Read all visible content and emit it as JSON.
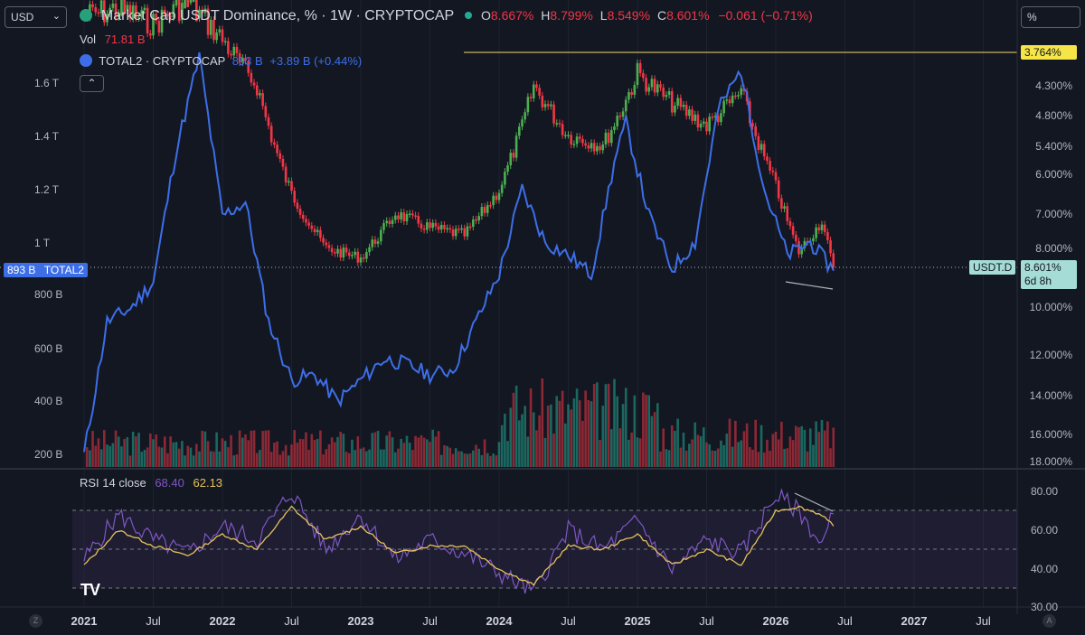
{
  "currency_selector": {
    "value": "USD"
  },
  "scale_selector": {
    "value": "%"
  },
  "header": {
    "title": "Market Cap USDT Dominance, % · 1W · CRYPTOCAP",
    "ohlc": {
      "o_label": "O",
      "o": "8.667%",
      "h_label": "H",
      "h": "8.799%",
      "l_label": "L",
      "l": "8.549%",
      "c_label": "C",
      "c": "8.601%",
      "chg": "−0.061 (−0.71%)"
    },
    "vol_label": "Vol",
    "vol_value": "71.81 B",
    "overlay_name": "TOTAL2 · CRYPTOCAP",
    "overlay_value": "893 B",
    "overlay_chg": "+3.89 B (+0.44%)",
    "collapse_icon": "chevron-up-icon"
  },
  "price_tags": {
    "line_level": "3.764%",
    "usdt_symbol": "USDT.D",
    "usdt_value": "8.601%",
    "usdt_countdown": "6d 8h",
    "total2_value": "893 B",
    "total2_symbol": "TOTAL2"
  },
  "rsi": {
    "label": "RSI 14 close",
    "value": "68.40",
    "ma_value": "62.13",
    "levels": [
      70,
      50,
      30
    ]
  },
  "colors": {
    "up": "#22ab94",
    "down": "#f23645",
    "candle_up": "#4caf50",
    "total2": "#3d6ee8",
    "rsi": "#7e57c2",
    "rsi_ma": "#e6c25b",
    "level_line": "#c9b458",
    "bg": "#131722"
  },
  "footer": {
    "z_icon": "z-icon",
    "a_icon": "a-icon",
    "logo": "TV"
  },
  "chart_data": [
    {
      "type": "line",
      "title": "Market Cap USDT Dominance, % · 1W · CRYPTOCAP",
      "y_scale": "inverted-log",
      "right_axis_ticks": [
        "4.300%",
        "4.800%",
        "5.400%",
        "6.000%",
        "7.000%",
        "8.000%",
        "10.000%",
        "12.000%",
        "14.000%",
        "16.000%",
        "18.000%"
      ],
      "left_axis_ticks": [
        "1.6 T",
        "1.4 T",
        "1.2 T",
        "1 T",
        "800 B",
        "600 B",
        "400 B",
        "200 B"
      ],
      "x_ticks": [
        "2021",
        "Jul",
        "2022",
        "Jul",
        "2023",
        "Jul",
        "2024",
        "Jul",
        "2025",
        "Jul",
        "2026",
        "Jul",
        "2027",
        "Jul"
      ],
      "usdt_dominance_pct": {
        "x": [
          "2021-01",
          "2021-04",
          "2021-07",
          "2021-10",
          "2022-01",
          "2022-04",
          "2022-07",
          "2022-10",
          "2023-01",
          "2023-04",
          "2023-07",
          "2023-10",
          "2024-01",
          "2024-04",
          "2024-07",
          "2024-10",
          "2025-01",
          "2025-04",
          "2025-07",
          "2025-10",
          "2026-01",
          "2026-03",
          "2026-05",
          "2026-06"
        ],
        "y": [
          3.3,
          3.2,
          3.4,
          3.1,
          3.6,
          4.3,
          6.5,
          8.0,
          8.3,
          7.0,
          7.4,
          7.6,
          6.4,
          4.3,
          5.2,
          5.4,
          4.1,
          4.6,
          5.0,
          4.4,
          6.3,
          8.1,
          7.2,
          8.601
        ]
      },
      "total2_usd": {
        "x": [
          "2021-01",
          "2021-03",
          "2021-05",
          "2021-07",
          "2021-09",
          "2021-11",
          "2022-01",
          "2022-03",
          "2022-05",
          "2022-07",
          "2022-09",
          "2022-11",
          "2023-01",
          "2023-03",
          "2023-05",
          "2023-07",
          "2023-09",
          "2023-11",
          "2024-01",
          "2024-03",
          "2024-05",
          "2024-07",
          "2024-09",
          "2024-11",
          "2024-12",
          "2025-02",
          "2025-04",
          "2025-06",
          "2025-08",
          "2025-10",
          "2025-12",
          "2026-02",
          "2026-04",
          "2026-06"
        ],
        "y": [
          "200 B",
          "700 B",
          "750 B",
          "850 B",
          "1.35 T",
          "1.7 T",
          "1.1 T",
          "1.15 T",
          "700 B",
          "480 B",
          "500 B",
          "400 B",
          "480 B",
          "560 B",
          "540 B",
          "500 B",
          "520 B",
          "700 B",
          "880 B",
          "1.2 T",
          "1.0 T",
          "950 B",
          "880 B",
          "1.3 T",
          "1.45 T",
          "1.1 T",
          "900 B",
          "1.0 T",
          "1.5 T",
          "1.65 T",
          "1.2 T",
          "950 B",
          "1.0 T",
          "893 B"
        ]
      }
    },
    {
      "type": "line",
      "title": "RSI 14 close",
      "ylim": [
        25,
        85
      ],
      "axis_ticks": [
        "80.00",
        "60.00",
        "40.00",
        "30.00"
      ],
      "rsi": {
        "x": [
          "2021-01",
          "2021-04",
          "2021-07",
          "2021-10",
          "2022-01",
          "2022-04",
          "2022-07",
          "2022-10",
          "2023-01",
          "2023-04",
          "2023-07",
          "2023-10",
          "2024-01",
          "2024-04",
          "2024-07",
          "2024-10",
          "2025-01",
          "2025-04",
          "2025-07",
          "2025-10",
          "2026-01",
          "2026-03",
          "2026-05",
          "2026-06"
        ],
        "y": [
          45,
          68,
          55,
          48,
          62,
          55,
          80,
          50,
          68,
          45,
          55,
          48,
          38,
          28,
          60,
          50,
          65,
          40,
          55,
          48,
          78,
          70,
          52,
          68.4
        ]
      },
      "rsi_ma": {
        "x": [
          "2021-01",
          "2021-04",
          "2021-07",
          "2021-10",
          "2022-01",
          "2022-04",
          "2022-07",
          "2022-10",
          "2023-01",
          "2023-04",
          "2023-07",
          "2023-10",
          "2024-01",
          "2024-04",
          "2024-07",
          "2024-10",
          "2025-01",
          "2025-04",
          "2025-07",
          "2025-10",
          "2026-01",
          "2026-03",
          "2026-05",
          "2026-06"
        ],
        "y": [
          42,
          60,
          52,
          47,
          58,
          50,
          72,
          55,
          62,
          48,
          52,
          52,
          40,
          32,
          52,
          50,
          58,
          42,
          50,
          42,
          70,
          72,
          68,
          62.13
        ]
      }
    }
  ]
}
